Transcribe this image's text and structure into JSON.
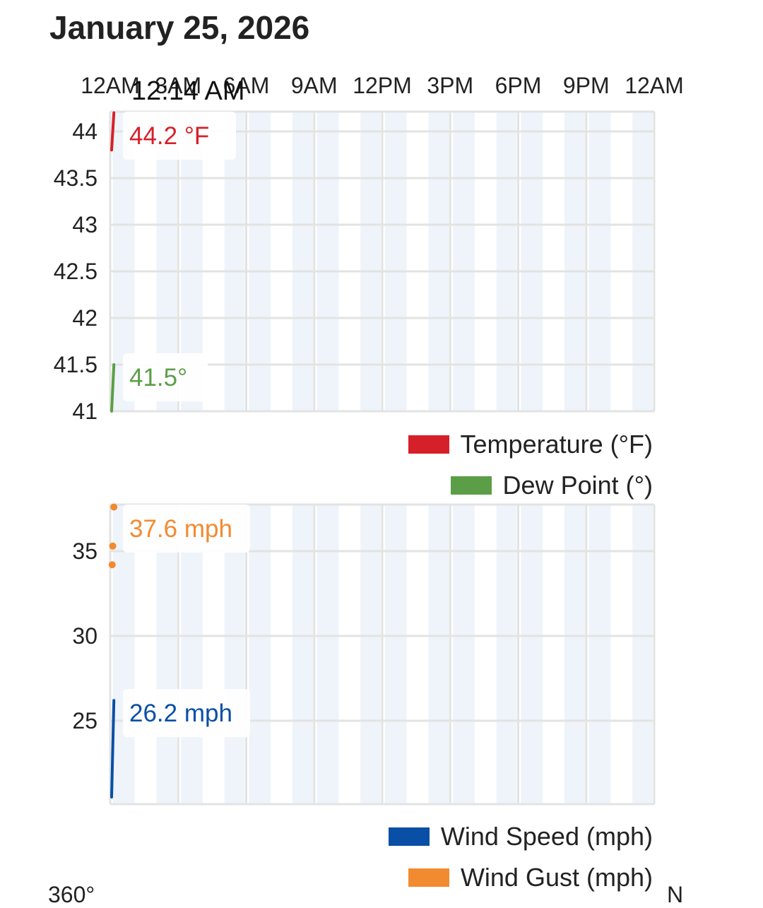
{
  "title": "January 25, 2026",
  "hover_time": "12:14 AM",
  "x_ticks": [
    "12AM",
    "3AM",
    "6AM",
    "9AM",
    "12PM",
    "3PM",
    "6PM",
    "9PM",
    "12AM"
  ],
  "colors": {
    "temperature": "#d62029",
    "dew_point": "#5b9e47",
    "wind_speed": "#0a4fa6",
    "wind_gust": "#f28a30",
    "grid": "#e3e3e3",
    "band": "#eef4fa"
  },
  "chart_data": [
    {
      "type": "line",
      "y_ticks": [
        "44",
        "43.5",
        "43",
        "42.5",
        "42",
        "41.5",
        "41"
      ],
      "ylim": [
        41,
        44.3
      ],
      "x_unit": "hours since 12AM",
      "series": [
        {
          "name": "Temperature (°F)",
          "color": "#d62029",
          "x": [
            0,
            0.2
          ],
          "y": [
            43.8,
            44.2
          ],
          "label": "44.2 °F"
        },
        {
          "name": "Dew Point (°)",
          "color": "#5b9e47",
          "x": [
            0,
            0.2
          ],
          "y": [
            41.0,
            41.5
          ],
          "label": "41.5°"
        }
      ]
    },
    {
      "type": "line",
      "y_ticks": [
        "35",
        "30",
        "25"
      ],
      "ylim": [
        20.5,
        37.6
      ],
      "series": [
        {
          "name": "Wind Speed (mph)",
          "color": "#0a4fa6",
          "x": [
            0,
            0.2
          ],
          "y": [
            20.5,
            26.2
          ],
          "label": "26.2 mph"
        },
        {
          "name": "Wind Gust (mph)",
          "color": "#f28a30",
          "type": "scatter",
          "x": [
            0.05,
            0.1,
            0.2
          ],
          "y": [
            34.2,
            35.3,
            37.6
          ],
          "label": "37.6 mph"
        }
      ]
    }
  ],
  "bottom_partial": {
    "left": "360°",
    "right": "N"
  }
}
